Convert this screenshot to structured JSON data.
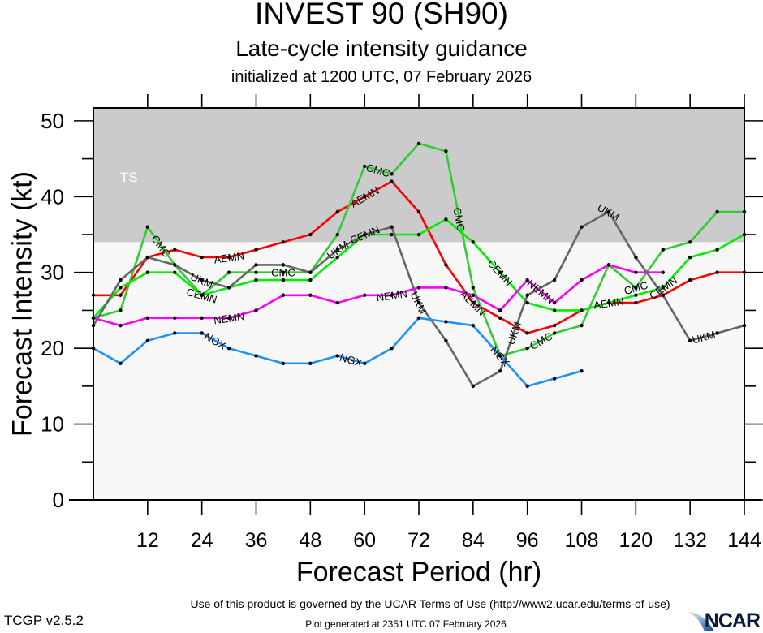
{
  "header": {
    "title": "INVEST 90 (SH90)",
    "subtitle": "Late-cycle intensity guidance",
    "initialized": "initialized at 1200 UTC, 07 February 2026"
  },
  "footer": {
    "terms": "Use of this product is governed by the UCAR Terms of Use (http://www2.ucar.edu/terms-of-use)",
    "generated": "Plot generated at 2351 UTC   07 February 2026",
    "version": "TCGP v2.5.2",
    "logo": "NCAR"
  },
  "chart_data": {
    "type": "line",
    "title": "INVEST 90 (SH90)",
    "subtitle": "Late-cycle intensity guidance",
    "xlabel": "Forecast Period (hr)",
    "ylabel": "Forecast Intensity (kt)",
    "xlim": [
      0,
      144
    ],
    "ylim": [
      0,
      51.7
    ],
    "xticks": [
      12,
      24,
      36,
      48,
      60,
      72,
      84,
      96,
      108,
      120,
      132,
      144
    ],
    "yticks": [
      0,
      10,
      20,
      30,
      40,
      50
    ],
    "grid": false,
    "legend": "inline labels on lines",
    "bands": [
      {
        "label": "TS",
        "from": 34,
        "to": 51.7,
        "color": "#cbcbcb"
      }
    ],
    "background_color": "#f8f8f8",
    "series": [
      {
        "name": "AEMN",
        "color": "#ff0000",
        "x": [
          0,
          6,
          12,
          18,
          24,
          30,
          36,
          42,
          48,
          54,
          60,
          66,
          72,
          78,
          84,
          90,
          96,
          102,
          108,
          114,
          120,
          126,
          132,
          138,
          144
        ],
        "values": [
          27,
          27,
          32,
          33,
          32,
          32,
          33,
          34,
          35,
          38,
          40,
          42,
          38,
          31,
          26,
          24,
          22,
          23,
          25,
          26,
          26,
          27,
          29,
          30,
          30
        ],
        "label_at": [
          30,
          60,
          84,
          114
        ]
      },
      {
        "name": "CMC",
        "color": "#33cc33",
        "x": [
          0,
          6,
          12,
          18,
          24,
          30,
          36,
          42,
          48,
          54,
          60,
          66,
          72,
          78,
          84,
          90,
          96,
          102,
          108,
          114,
          120,
          126,
          132,
          138,
          144
        ],
        "values": [
          24,
          25,
          36,
          31,
          27,
          30,
          30,
          30,
          30,
          35,
          44,
          43,
          47,
          46,
          28,
          19,
          20,
          22,
          23,
          31,
          28,
          33,
          34,
          38,
          38
        ],
        "label_at": [
          15,
          42,
          63,
          81,
          99,
          120
        ]
      },
      {
        "name": "CEMN",
        "color": "#00ee00",
        "x": [
          0,
          6,
          12,
          18,
          24,
          30,
          36,
          42,
          48,
          54,
          60,
          66,
          72,
          78,
          84,
          90,
          96,
          102,
          108,
          114,
          120,
          126,
          132,
          138,
          144
        ],
        "values": [
          24,
          28,
          30,
          30,
          27,
          28,
          29,
          29,
          29,
          32,
          35,
          35,
          35,
          37,
          34,
          30,
          26,
          25,
          25,
          26,
          27,
          28,
          32,
          33,
          35
        ],
        "label_at": [
          24,
          60,
          90,
          126
        ]
      },
      {
        "name": "UKM",
        "color": "#666666",
        "x": [
          0,
          6,
          12,
          18,
          24,
          30,
          36,
          42,
          48,
          54,
          60,
          66,
          72,
          78,
          84,
          90,
          96,
          102,
          108,
          114,
          120,
          126,
          132,
          138,
          144
        ],
        "values": [
          23,
          29,
          32,
          31,
          29,
          28,
          31,
          31,
          30,
          33,
          35,
          36,
          26,
          21,
          15,
          17,
          27,
          29,
          36,
          38,
          32,
          27,
          21,
          22,
          23
        ],
        "label_at": [
          24,
          54,
          72,
          93,
          114,
          135
        ]
      },
      {
        "name": "NEMN",
        "color": "#ff00ff",
        "x": [
          0,
          6,
          12,
          18,
          24,
          30,
          36,
          42,
          48,
          54,
          60,
          66,
          72,
          78,
          84,
          90,
          96,
          102,
          108,
          114,
          120,
          126
        ],
        "values": [
          24,
          23,
          24,
          24,
          24,
          24,
          25,
          27,
          27,
          26,
          27,
          27,
          28,
          28,
          27,
          25,
          29,
          26,
          29,
          31,
          30,
          30
        ],
        "label_at": [
          30,
          66,
          99
        ]
      },
      {
        "name": "NGX",
        "color": "#1e90ff",
        "x": [
          0,
          6,
          12,
          18,
          24,
          30,
          36,
          42,
          48,
          54,
          60,
          66,
          72,
          78,
          84,
          90,
          96,
          102,
          108
        ],
        "values": [
          20,
          18,
          21,
          22,
          22,
          20,
          19,
          18,
          18,
          19,
          18,
          20,
          24,
          23.5,
          23,
          19,
          15,
          16,
          17
        ],
        "label_at": [
          27,
          57,
          90
        ]
      }
    ]
  }
}
